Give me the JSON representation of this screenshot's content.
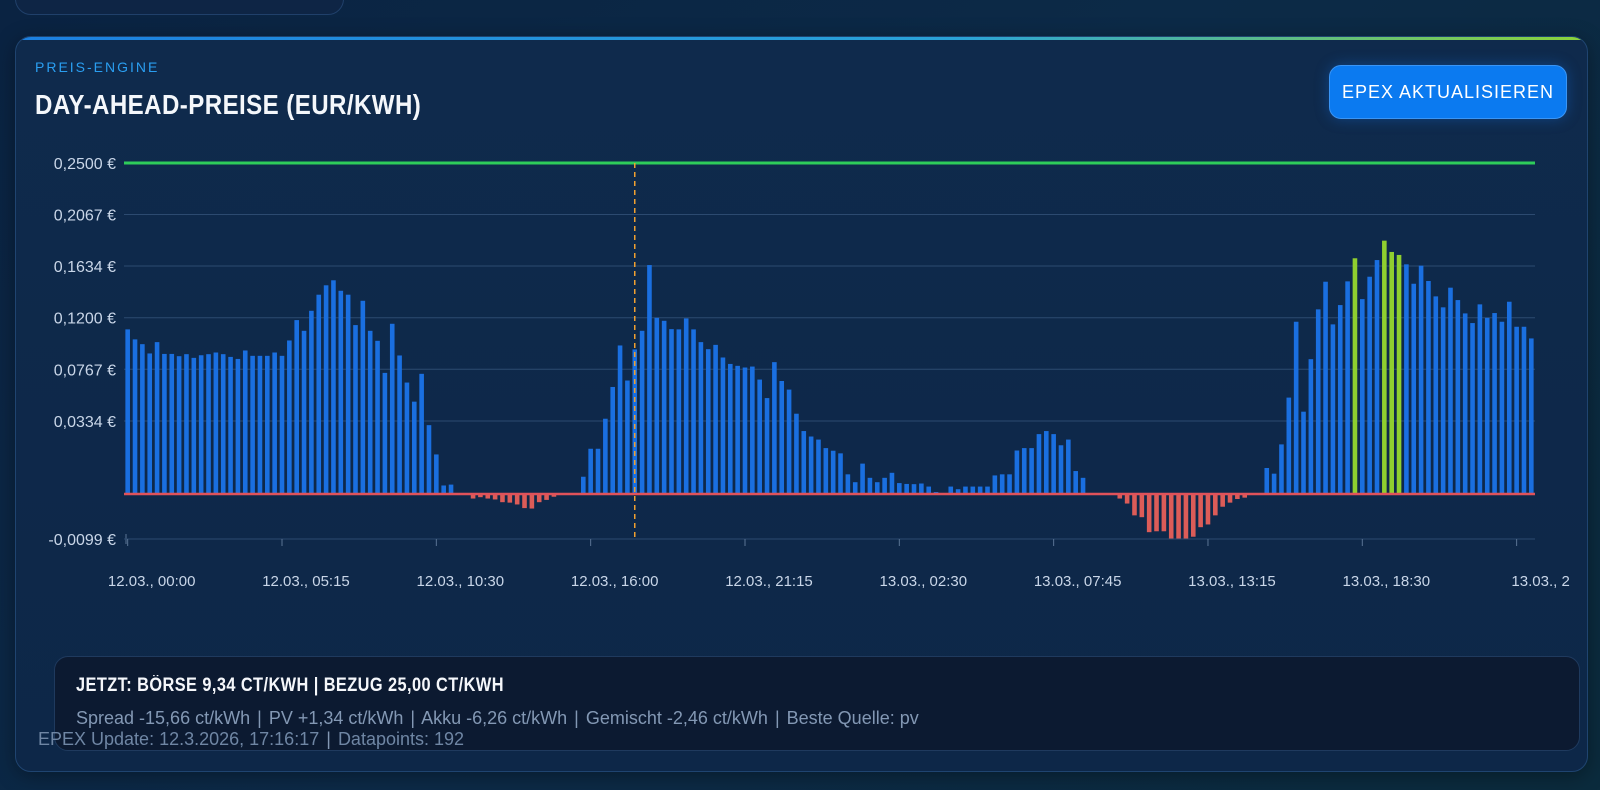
{
  "header": {
    "eyebrow": "PREIS-ENGINE",
    "title": "DAY-AHEAD-PREISE (EUR/KWH)",
    "refresh_button": "EPEX AKTUALISIEREN"
  },
  "summary": {
    "title": "JETZT: BÖRSE 9,34 CT/KWH | BEZUG 25,00 CT/KWH",
    "details": [
      "Spread -15,66 ct/kWh",
      "PV +1,34 ct/kWh",
      "Akku -6,26 ct/kWh",
      "Gemischt -2,46 ct/kWh",
      "Beste Quelle: pv"
    ],
    "separator": "|"
  },
  "footer": {
    "update": "EPEX Update: 12.3.2026, 17:16:17",
    "datapoints": "Datapoints: 192"
  },
  "colors": {
    "bar_positive": "#1a6fe0",
    "bar_negative": "#dc5c58",
    "bar_highlight": "#8fcf2f",
    "reference_line": "#2ecc5a",
    "zero_line": "#e0525a",
    "now_line": "#f0a030",
    "accent": "#0b7af0"
  },
  "chart_data": {
    "type": "bar",
    "title": "Day-Ahead-Preise (EUR/kWh)",
    "xlabel": "",
    "ylabel": "EUR/kWh",
    "interval_minutes": 15,
    "x_tick_labels": [
      "12.03., 00:00",
      "12.03., 05:15",
      "12.03., 10:30",
      "12.03., 16:00",
      "12.03., 21:15",
      "13.03., 02:30",
      "13.03., 07:45",
      "13.03., 13:15",
      "13.03., 18:30",
      "13.03., 2"
    ],
    "y_tick_labels": [
      "0,2500 €",
      "0,2067 €",
      "0,1634 €",
      "0,1200 €",
      "0,0767 €",
      "0,0334 €",
      "-0,0099 €"
    ],
    "y_ticks": [
      0.25,
      0.2067,
      0.1634,
      0.12,
      0.0767,
      0.0334,
      -0.0099
    ],
    "ylim": [
      -0.0099,
      0.25
    ],
    "grid": true,
    "reference_line_value": 0.25,
    "now_index": 69,
    "highlighted_indices": [
      167,
      171,
      172,
      173
    ],
    "values": [
      0.1102,
      0.1018,
      0.0978,
      0.09,
      0.0995,
      0.0896,
      0.0896,
      0.0877,
      0.0894,
      0.0863,
      0.0885,
      0.0894,
      0.0908,
      0.0894,
      0.0871,
      0.0854,
      0.0925,
      0.088,
      0.088,
      0.088,
      0.0908,
      0.088,
      0.1009,
      0.118,
      0.109,
      0.1258,
      0.1393,
      0.1472,
      0.1514,
      0.1426,
      0.1393,
      0.1138,
      0.1342,
      0.109,
      0.1006,
      0.0737,
      0.1149,
      0.0883,
      0.0656,
      0.0496,
      0.0729,
      0.0315,
      0.0181,
      0.0039,
      0.0043,
      0,
      0,
      -0.001,
      -0.0007,
      -0.001,
      -0.0012,
      -0.0018,
      -0.0019,
      -0.0023,
      -0.0031,
      -0.0032,
      -0.0018,
      -0.0013,
      -0.0006,
      0,
      0,
      0,
      0.0079,
      0.0207,
      0.0207,
      0.0353,
      0.0619,
      0.0967,
      0.0673,
      0.0934,
      0.109,
      0.1642,
      0.1199,
      0.1174,
      0.1104,
      0.1102,
      0.1194,
      0.1102,
      0.0995,
      0.0936,
      0.0972,
      0.0866,
      0.0812,
      0.0796,
      0.0782,
      0.079,
      0.0681,
      0.0526,
      0.0827,
      0.0669,
      0.0597,
      0.0395,
      0.0288,
      0.0263,
      0.0249,
      0.021,
      0.0198,
      0.0186,
      0.009,
      0.0054,
      0.0139,
      0.0074,
      0.0054,
      0.0074,
      0.0097,
      0.005,
      0.0046,
      0.0045,
      0.0048,
      0.0034,
      0.0009,
      0,
      0.0034,
      0.0022,
      0.0034,
      0.0034,
      0.0034,
      0.0034,
      0.0085,
      0.009,
      0.009,
      0.0199,
      0.021,
      0.021,
      0.0274,
      0.0288,
      0.0274,
      0.0223,
      0.0249,
      0.0105,
      0.0074,
      0,
      0,
      0,
      0,
      -0.001,
      -0.0021,
      -0.0047,
      -0.0051,
      -0.0084,
      -0.0082,
      -0.0082,
      -0.0099,
      -0.0099,
      -0.0099,
      -0.0094,
      -0.0073,
      -0.0067,
      -0.0047,
      -0.0028,
      -0.0019,
      -0.0011,
      -0.0008,
      0,
      0,
      0.0119,
      0.0093,
      0.0227,
      0.053,
      0.1166,
      0.0412,
      0.0852,
      0.127,
      0.1502,
      0.1144,
      0.1306,
      0.1505,
      0.1699,
      0.1356,
      0.1544,
      0.1684,
      0.1847,
      0.1752,
      0.1727,
      0.1648,
      0.1485,
      0.1637,
      0.1508,
      0.1379,
      0.1287,
      0.1452,
      0.1348,
      0.1236,
      0.1155,
      0.1312,
      0.1199,
      0.1239,
      0.1166,
      0.1334,
      0.1124,
      0.1124,
      0.1026
    ]
  }
}
